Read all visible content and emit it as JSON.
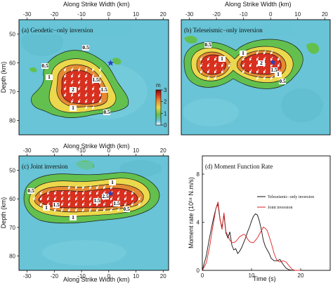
{
  "axes": {
    "top_label": "Along Strike Width (km)",
    "bottom_label": "Along Strike Width (km)",
    "depth_label": "Depth",
    "depth_unit": "(km)"
  },
  "panels": {
    "a": "(a) Geodetic−only inversion",
    "b": "(b) Teleseismic−only inversion",
    "c": "(c) Joint inversion",
    "d": "(d) Moment Function Rate"
  },
  "colorbar": {
    "label": "m",
    "ticks": [
      "0",
      "1",
      "2",
      "3"
    ]
  },
  "colors": {
    "background": "#68c4d6",
    "green": "#63c04e",
    "yellow": "#ecd84c",
    "orange": "#e58a32",
    "red": "#d8301f",
    "teleseismic_line": "#111111",
    "joint_line": "#e02020",
    "epicenter": "#2a3fb8"
  },
  "contour_labels": {
    "a": [
      "0.5",
      "0.5",
      "1",
      "1.5",
      "2",
      "1",
      "0.5",
      "1.5"
    ],
    "b": [
      "0.5",
      "1",
      "1",
      "2",
      "1.5",
      "1",
      "0.5"
    ],
    "c": [
      "0.5",
      "1",
      "1.5",
      "1",
      "2.5",
      "1.5",
      "1.5",
      "1",
      "0.5"
    ]
  },
  "chart_data": [
    {
      "type": "heatmap",
      "title": "(a) Geodetic−only inversion",
      "xlabel": "Along Strike Width (km)",
      "ylabel": "Depth (km)",
      "x_range": [
        -33,
        22
      ],
      "y_range": [
        45,
        85
      ],
      "x_ticks": [
        -30,
        -20,
        -10,
        0,
        10,
        20
      ],
      "y_ticks": [
        50,
        60,
        70,
        80
      ],
      "colorbar": {
        "label": "m",
        "range": [
          0,
          3
        ],
        "ticks": [
          0,
          1,
          2,
          3
        ]
      },
      "peak_slip_m": 2,
      "epicenter": [
        0,
        59.5
      ],
      "contour_levels": [
        0.5,
        1,
        1.5,
        2
      ]
    },
    {
      "type": "heatmap",
      "title": "(b) Teleseismic−only inversion",
      "xlabel": "Along Strike Width (km)",
      "ylabel": "Depth (km)",
      "x_range": [
        -33,
        22
      ],
      "y_range": [
        45,
        85
      ],
      "x_ticks": [
        -30,
        -20,
        -10,
        0,
        10,
        20
      ],
      "y_ticks": [
        50,
        60,
        70,
        80
      ],
      "peak_slip_m": 2,
      "epicenter": [
        0,
        59.5
      ],
      "contour_levels": [
        0.5,
        1,
        1.5,
        2
      ]
    },
    {
      "type": "heatmap",
      "title": "(c) Joint inversion",
      "xlabel": "Along Strike Width (km)",
      "ylabel": "Depth (km)",
      "x_range": [
        -33,
        22
      ],
      "y_range": [
        45,
        85
      ],
      "x_ticks": [
        -30,
        -20,
        -10,
        0,
        10,
        20
      ],
      "y_ticks": [
        50,
        60,
        70,
        80
      ],
      "peak_slip_m": 2.5,
      "epicenter": [
        0,
        59.5
      ],
      "contour_levels": [
        0.5,
        1,
        1.5,
        2.5
      ]
    },
    {
      "type": "line",
      "title": "(d) Moment Function Rate",
      "xlabel": "Time (s)",
      "ylabel": "Moment rate (10¹⁸ N.m/s)",
      "xlim": [
        0,
        26
      ],
      "ylim": [
        0,
        8
      ],
      "x_ticks": [
        0,
        10,
        20
      ],
      "y_ticks": [
        0,
        4,
        8
      ],
      "series": [
        {
          "name": "Teleseismic−only inversion",
          "color": "#111111",
          "x": [
            0,
            0.8,
            1.5,
            2.2,
            2.8,
            3.2,
            3.6,
            4.0,
            4.4,
            4.8,
            5.2,
            5.6,
            6.0,
            6.4,
            6.8,
            7.2,
            7.6,
            8.0,
            8.4,
            8.8,
            9.2,
            9.6,
            10.0,
            10.4,
            10.8,
            11.2,
            11.6,
            12.0,
            12.4,
            12.8,
            13.2,
            13.6,
            14.0,
            14.6,
            15.2,
            15.8,
            16.4,
            17.0,
            17.6,
            18.2,
            18.8,
            19.4,
            20.0
          ],
          "y": [
            0,
            1.2,
            2.8,
            4.2,
            5.2,
            5.5,
            4.2,
            3.6,
            4.6,
            3.1,
            2.7,
            3.2,
            2.1,
            1.7,
            1.8,
            1.4,
            1.6,
            1.9,
            2.3,
            2.7,
            3.2,
            3.6,
            4.1,
            4.5,
            4.7,
            4.6,
            4.1,
            3.4,
            2.5,
            2.0,
            1.7,
            1.4,
            1.0,
            0.8,
            0.8,
            0.9,
            0.5,
            0.2,
            0.05,
            0,
            0,
            0,
            0
          ]
        },
        {
          "name": "Joint inversion",
          "color": "#e02020",
          "x": [
            0,
            0.8,
            1.5,
            2.2,
            2.8,
            3.2,
            3.6,
            4.0,
            4.4,
            4.8,
            5.2,
            5.6,
            6.0,
            6.4,
            6.8,
            7.2,
            7.6,
            8.0,
            8.4,
            8.8,
            9.2,
            9.6,
            10.0,
            10.4,
            10.8,
            11.2,
            11.6,
            12.0,
            12.4,
            12.8,
            13.2,
            13.6,
            14.0,
            14.6,
            15.2,
            15.8,
            16.4,
            17.0,
            17.6,
            18.2,
            18.8,
            19.4,
            20.0
          ],
          "y": [
            0,
            0.6,
            2.0,
            3.8,
            5.2,
            5.7,
            4.3,
            3.4,
            4.8,
            3.2,
            2.9,
            2.5,
            2.3,
            2.3,
            2.4,
            2.6,
            2.8,
            2.9,
            3.0,
            2.9,
            2.6,
            2.4,
            2.3,
            2.3,
            2.5,
            2.7,
            3.0,
            3.3,
            3.6,
            3.5,
            3.3,
            2.8,
            2.3,
            1.4,
            0.8,
            0.7,
            0.8,
            0.7,
            0.4,
            0.1,
            0,
            0,
            0
          ]
        }
      ]
    }
  ]
}
